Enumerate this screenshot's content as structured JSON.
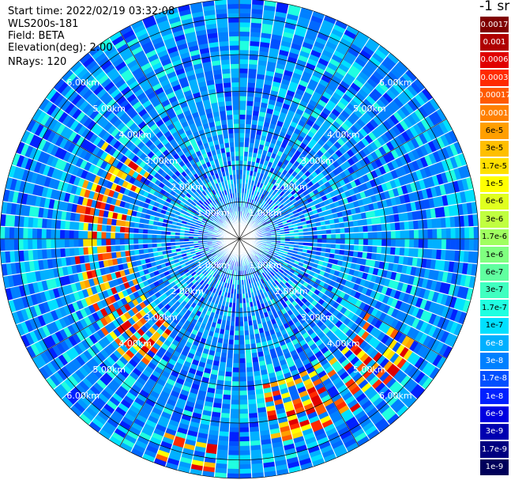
{
  "header": {
    "start_time": "Start time: 2022/02/19 03:32:08",
    "instrument": "WLS200s-181",
    "field": "Field: BETA",
    "elevation": "Elevation(deg): 2.00",
    "nrays": "NRays: 120"
  },
  "colorbar": {
    "unit": "-1 sr",
    "labels": [
      "0.0017",
      "0.001",
      "0.0006",
      "0.0003",
      "0.00017",
      "0.0001",
      "6e-5",
      "3e-5",
      "1.7e-5",
      "1e-5",
      "6e-6",
      "3e-6",
      "1.7e-6",
      "1e-6",
      "6e-7",
      "3e-7",
      "1.7e-7",
      "1e-7",
      "6e-8",
      "3e-8",
      "1.7e-8",
      "1e-8",
      "6e-9",
      "3e-9",
      "1.7e-9",
      "1e-9"
    ],
    "colors": [
      "#800000",
      "#b00000",
      "#e00000",
      "#ff2a00",
      "#ff5a00",
      "#ff8000",
      "#ff9f00",
      "#ffbf00",
      "#ffe000",
      "#ffff00",
      "#e0ff1f",
      "#c0ff40",
      "#a0ff60",
      "#80ff80",
      "#60ffa0",
      "#40ffc0",
      "#20ffe0",
      "#00e0ff",
      "#00b0ff",
      "#0080ff",
      "#0050ff",
      "#0020ff",
      "#0000e0",
      "#0000b0",
      "#000080",
      "#00005a"
    ]
  },
  "chart_data": {
    "type": "heatmap",
    "subtype": "polar-ppi",
    "nrays": 120,
    "range_rings_km": [
      1,
      2,
      3,
      4,
      5,
      6
    ],
    "ring_labels": [
      "1.00km",
      "2.00km",
      "3.00km",
      "4.00km",
      "5.00km",
      "6.00km"
    ],
    "max_range_km": 6.5,
    "spokes_deg": [
      0,
      30,
      60,
      90,
      120,
      150,
      180,
      210,
      240,
      270,
      300,
      330
    ],
    "background_value": "3e-8",
    "features": [
      {
        "description": "high backscatter arc",
        "azimuth_deg": [
          215,
          305
        ],
        "range_km": [
          3.0,
          4.5
        ],
        "value": "1.7e-5"
      },
      {
        "description": "high backscatter band",
        "azimuth_deg": [
          120,
          170
        ],
        "range_km": [
          4.0,
          5.6
        ],
        "value": "1.7e-5"
      },
      {
        "description": "high backscatter patch",
        "azimuth_deg": [
          185,
          200
        ],
        "range_km": [
          5.6,
          6.4
        ],
        "value": "3e-5"
      }
    ]
  }
}
